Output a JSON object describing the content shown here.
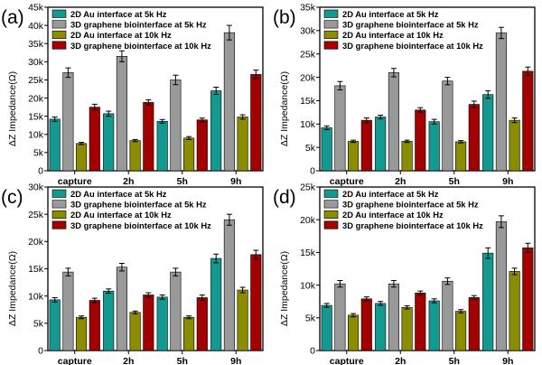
{
  "colors": {
    "au5k": "#13998f",
    "gr5k": "#999999",
    "au10k": "#8c8c00",
    "gr10k": "#a30000",
    "errbar": "#000000"
  },
  "chart_data": [
    {
      "panel": "(a)",
      "type": "bar",
      "categories": [
        "capture",
        "2h",
        "5h",
        "9h"
      ],
      "ylabel": "ΔZ Impedance(Ω)",
      "ylim": [
        0,
        45000
      ],
      "yticks": [
        0,
        5000,
        10000,
        15000,
        20000,
        25000,
        30000,
        35000,
        40000,
        45000
      ],
      "ytick_labels": [
        "0",
        "5k",
        "10k",
        "15k",
        "20k",
        "25k",
        "30k",
        "35k",
        "40k",
        "45k"
      ],
      "legend_position": "top-left",
      "series": [
        {
          "name": "2D Au interface at 5k Hz",
          "color": "#13998f",
          "values": [
            14200,
            15700,
            13600,
            22000
          ],
          "errors": [
            600,
            700,
            500,
            1000
          ]
        },
        {
          "name": "3D graphene biointerface at 5k Hz",
          "color": "#999999",
          "values": [
            27000,
            31500,
            25000,
            38000
          ],
          "errors": [
            1300,
            1500,
            1300,
            2000
          ]
        },
        {
          "name": "2D Au interface at 10k Hz",
          "color": "#8c8c00",
          "values": [
            7500,
            8300,
            9000,
            14800
          ],
          "errors": [
            300,
            300,
            400,
            600
          ]
        },
        {
          "name": "3D graphene biointerface at 10k Hz",
          "color": "#a30000",
          "values": [
            17500,
            18800,
            14000,
            26500
          ],
          "errors": [
            800,
            700,
            500,
            1200
          ]
        }
      ]
    },
    {
      "panel": "(b)",
      "type": "bar",
      "categories": [
        "capture",
        "2h",
        "5h",
        "9h"
      ],
      "ylabel": "ΔZ Impedance(Ω)",
      "ylim": [
        0,
        35000
      ],
      "yticks": [
        0,
        5000,
        10000,
        15000,
        20000,
        25000,
        30000,
        35000
      ],
      "ytick_labels": [
        "0",
        "5k",
        "10k",
        "15k",
        "20k",
        "25k",
        "30k",
        "35k"
      ],
      "legend_position": "top-left",
      "series": [
        {
          "name": "2D Au interface at 5k Hz",
          "color": "#13998f",
          "values": [
            9200,
            11500,
            10500,
            16300
          ],
          "errors": [
            400,
            400,
            500,
            800
          ]
        },
        {
          "name": "3D graphene biointerface at 5k Hz",
          "color": "#999999",
          "values": [
            18200,
            21000,
            19200,
            29500
          ],
          "errors": [
            900,
            900,
            800,
            1200
          ]
        },
        {
          "name": "2D Au interface at 10k Hz",
          "color": "#8c8c00",
          "values": [
            6300,
            6300,
            6200,
            10800
          ],
          "errors": [
            250,
            250,
            250,
            500
          ]
        },
        {
          "name": "3D graphene biointerface at 10k Hz",
          "color": "#a30000",
          "values": [
            10800,
            13000,
            14200,
            21300
          ],
          "errors": [
            500,
            500,
            700,
            900
          ]
        }
      ]
    },
    {
      "panel": "(c)",
      "type": "bar",
      "categories": [
        "capture",
        "2h",
        "5h",
        "9h"
      ],
      "ylabel": "ΔZ Impedance(Ω)",
      "ylim": [
        0,
        30000
      ],
      "yticks": [
        0,
        5000,
        10000,
        15000,
        20000,
        25000,
        30000
      ],
      "ytick_labels": [
        "0",
        "5k",
        "10k",
        "15k",
        "20k",
        "25k",
        "30k"
      ],
      "legend_position": "top-left",
      "series": [
        {
          "name": "2D Au interface at 5k Hz",
          "color": "#13998f",
          "values": [
            9300,
            10900,
            9800,
            16900
          ],
          "errors": [
            400,
            400,
            400,
            800
          ]
        },
        {
          "name": "3D graphene biointerface at 5k Hz",
          "color": "#999999",
          "values": [
            14400,
            15300,
            14400,
            24000
          ],
          "errors": [
            700,
            700,
            700,
            1000
          ]
        },
        {
          "name": "2D Au interface at 10k Hz",
          "color": "#8c8c00",
          "values": [
            6100,
            7000,
            6100,
            11100
          ],
          "errors": [
            250,
            250,
            250,
            500
          ]
        },
        {
          "name": "3D graphene biointerface at 10k Hz",
          "color": "#a30000",
          "values": [
            9200,
            10200,
            9700,
            17600
          ],
          "errors": [
            400,
            400,
            500,
            800
          ]
        }
      ]
    },
    {
      "panel": "(d)",
      "type": "bar",
      "categories": [
        "capture",
        "2h",
        "5h",
        "9h"
      ],
      "ylabel": "ΔZ Impedance(Ω)",
      "ylim": [
        0,
        25000
      ],
      "yticks": [
        0,
        5000,
        10000,
        15000,
        20000,
        25000
      ],
      "ytick_labels": [
        "0",
        "5k",
        "10k",
        "15k",
        "20k",
        "25k"
      ],
      "legend_position": "top-left",
      "series": [
        {
          "name": "2D Au interface at 5k Hz",
          "color": "#13998f",
          "values": [
            6900,
            7200,
            7600,
            14900
          ],
          "errors": [
            300,
            300,
            300,
            800
          ]
        },
        {
          "name": "3D graphene biointerface at 5k Hz",
          "color": "#999999",
          "values": [
            10200,
            10200,
            10600,
            19700
          ],
          "errors": [
            500,
            500,
            500,
            900
          ]
        },
        {
          "name": "2D Au interface at 10k Hz",
          "color": "#8c8c00",
          "values": [
            5400,
            6600,
            6000,
            12100
          ],
          "errors": [
            250,
            250,
            250,
            500
          ]
        },
        {
          "name": "3D graphene biointerface at 10k Hz",
          "color": "#a30000",
          "values": [
            7900,
            8800,
            8100,
            15700
          ],
          "errors": [
            300,
            300,
            300,
            700
          ]
        }
      ]
    }
  ]
}
